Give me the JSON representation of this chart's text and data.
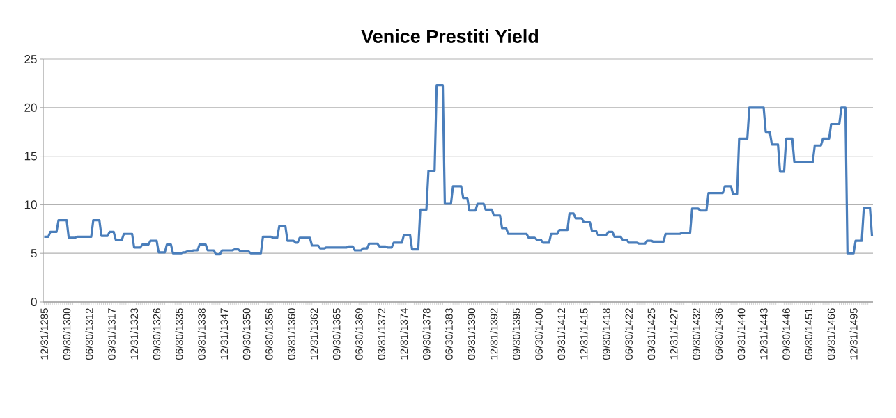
{
  "chart_data": {
    "type": "line",
    "title": "Venice Prestiti Yield",
    "categories": [
      "12/31/1285",
      null,
      null,
      null,
      null,
      null,
      null,
      null,
      null,
      null,
      null,
      "09/30/1300",
      null,
      null,
      null,
      null,
      null,
      null,
      null,
      null,
      null,
      null,
      "06/30/1312",
      null,
      null,
      null,
      null,
      null,
      null,
      null,
      null,
      null,
      null,
      "03/31/1317",
      null,
      null,
      null,
      null,
      null,
      null,
      null,
      null,
      null,
      null,
      "12/31/1323",
      null,
      null,
      null,
      null,
      null,
      null,
      null,
      null,
      null,
      null,
      "09/30/1326",
      null,
      null,
      null,
      null,
      null,
      null,
      null,
      null,
      null,
      null,
      "06/30/1335",
      null,
      null,
      null,
      null,
      null,
      null,
      null,
      null,
      null,
      null,
      "03/31/1338",
      null,
      null,
      null,
      null,
      null,
      null,
      null,
      null,
      null,
      null,
      "12/31/1347",
      null,
      null,
      null,
      null,
      null,
      null,
      null,
      null,
      null,
      null,
      "09/30/1350",
      null,
      null,
      null,
      null,
      null,
      null,
      null,
      null,
      null,
      null,
      "06/30/1356",
      null,
      null,
      null,
      null,
      null,
      null,
      null,
      null,
      null,
      null,
      "03/31/1360",
      null,
      null,
      null,
      null,
      null,
      null,
      null,
      null,
      null,
      null,
      "12/31/1362",
      null,
      null,
      null,
      null,
      null,
      null,
      null,
      null,
      null,
      null,
      "09/30/1365",
      null,
      null,
      null,
      null,
      null,
      null,
      null,
      null,
      null,
      null,
      "06/30/1369",
      null,
      null,
      null,
      null,
      null,
      null,
      null,
      null,
      null,
      null,
      "03/31/1372",
      null,
      null,
      null,
      null,
      null,
      null,
      null,
      null,
      null,
      null,
      "12/31/1374",
      null,
      null,
      null,
      null,
      null,
      null,
      null,
      null,
      null,
      null,
      "09/30/1378",
      null,
      null,
      null,
      null,
      null,
      null,
      null,
      null,
      null,
      null,
      "06/30/1383",
      null,
      null,
      null,
      null,
      null,
      null,
      null,
      null,
      null,
      null,
      "03/31/1390",
      null,
      null,
      null,
      null,
      null,
      null,
      null,
      null,
      null,
      null,
      "12/31/1392",
      null,
      null,
      null,
      null,
      null,
      null,
      null,
      null,
      null,
      null,
      "09/30/1395",
      null,
      null,
      null,
      null,
      null,
      null,
      null,
      null,
      null,
      null,
      "06/30/1400",
      null,
      null,
      null,
      null,
      null,
      null,
      null,
      null,
      null,
      null,
      "03/31/1412",
      null,
      null,
      null,
      null,
      null,
      null,
      null,
      null,
      null,
      null,
      "12/31/1415",
      null,
      null,
      null,
      null,
      null,
      null,
      null,
      null,
      null,
      null,
      "09/30/1418",
      null,
      null,
      null,
      null,
      null,
      null,
      null,
      null,
      null,
      null,
      "06/30/1422",
      null,
      null,
      null,
      null,
      null,
      null,
      null,
      null,
      null,
      null,
      "03/31/1425",
      null,
      null,
      null,
      null,
      null,
      null,
      null,
      null,
      null,
      null,
      "12/31/1427",
      null,
      null,
      null,
      null,
      null,
      null,
      null,
      null,
      null,
      null,
      "09/30/1432",
      null,
      null,
      null,
      null,
      null,
      null,
      null,
      null,
      null,
      null,
      "06/30/1436",
      null,
      null,
      null,
      null,
      null,
      null,
      null,
      null,
      null,
      null,
      "03/31/1440",
      null,
      null,
      null,
      null,
      null,
      null,
      null,
      null,
      null,
      null,
      "12/31/1443",
      null,
      null,
      null,
      null,
      null,
      null,
      null,
      null,
      null,
      null,
      "09/30/1446",
      null,
      null,
      null,
      null,
      null,
      null,
      null,
      null,
      null,
      null,
      "06/30/1451",
      null,
      null,
      null,
      null,
      null,
      null,
      null,
      null,
      null,
      null,
      "03/31/1466",
      null,
      null,
      null,
      null,
      null,
      null,
      null,
      null,
      null,
      null,
      "12/31/1495",
      null,
      null,
      null,
      null,
      null,
      null,
      null,
      null,
      null
    ],
    "values": [
      6.7,
      6.7,
      6.7,
      7.2,
      7.2,
      7.2,
      7.2,
      8.4,
      8.4,
      8.4,
      8.4,
      8.4,
      6.6,
      6.6,
      6.6,
      6.6,
      6.7,
      6.7,
      6.7,
      6.7,
      6.7,
      6.7,
      6.7,
      6.7,
      8.4,
      8.4,
      8.4,
      8.4,
      6.8,
      6.8,
      6.8,
      6.8,
      7.2,
      7.2,
      7.2,
      6.4,
      6.4,
      6.4,
      6.4,
      7.0,
      7.0,
      7.0,
      7.0,
      7.0,
      5.6,
      5.6,
      5.6,
      5.6,
      5.9,
      5.9,
      5.9,
      5.9,
      6.3,
      6.3,
      6.3,
      6.3,
      5.1,
      5.1,
      5.1,
      5.1,
      5.9,
      5.9,
      5.9,
      5.0,
      5.0,
      5.0,
      5.0,
      5.0,
      5.1,
      5.1,
      5.2,
      5.2,
      5.2,
      5.3,
      5.3,
      5.3,
      5.9,
      5.9,
      5.9,
      5.9,
      5.3,
      5.3,
      5.3,
      5.3,
      4.9,
      4.9,
      4.9,
      5.3,
      5.3,
      5.3,
      5.3,
      5.3,
      5.3,
      5.4,
      5.4,
      5.4,
      5.2,
      5.2,
      5.2,
      5.2,
      5.2,
      5.0,
      5.0,
      5.0,
      5.0,
      5.0,
      5.0,
      6.7,
      6.7,
      6.7,
      6.7,
      6.7,
      6.6,
      6.6,
      6.6,
      7.8,
      7.8,
      7.8,
      7.8,
      6.3,
      6.3,
      6.3,
      6.3,
      6.1,
      6.1,
      6.6,
      6.6,
      6.6,
      6.6,
      6.6,
      6.6,
      5.8,
      5.8,
      5.8,
      5.8,
      5.5,
      5.5,
      5.5,
      5.6,
      5.6,
      5.6,
      5.6,
      5.6,
      5.6,
      5.6,
      5.6,
      5.6,
      5.6,
      5.6,
      5.7,
      5.7,
      5.7,
      5.3,
      5.3,
      5.3,
      5.3,
      5.5,
      5.5,
      5.5,
      6.0,
      6.0,
      6.0,
      6.0,
      6.0,
      5.7,
      5.7,
      5.7,
      5.7,
      5.6,
      5.6,
      5.6,
      6.1,
      6.1,
      6.1,
      6.1,
      6.1,
      6.9,
      6.9,
      6.9,
      6.9,
      5.4,
      5.4,
      5.4,
      5.4,
      9.5,
      9.5,
      9.5,
      9.5,
      13.5,
      13.5,
      13.5,
      13.5,
      22.3,
      22.3,
      22.3,
      22.3,
      10.1,
      10.1,
      10.1,
      10.1,
      11.9,
      11.9,
      11.9,
      11.9,
      11.9,
      10.7,
      10.7,
      10.7,
      9.4,
      9.4,
      9.4,
      9.4,
      10.1,
      10.1,
      10.1,
      10.1,
      9.5,
      9.5,
      9.5,
      9.5,
      8.9,
      8.9,
      8.9,
      8.9,
      7.6,
      7.6,
      7.6,
      7.0,
      7.0,
      7.0,
      7.0,
      7.0,
      7.0,
      7.0,
      7.0,
      7.0,
      7.0,
      6.6,
      6.6,
      6.6,
      6.6,
      6.4,
      6.4,
      6.4,
      6.1,
      6.1,
      6.1,
      6.1,
      7.0,
      7.0,
      7.0,
      7.0,
      7.4,
      7.4,
      7.4,
      7.4,
      7.4,
      9.1,
      9.1,
      9.1,
      8.6,
      8.6,
      8.6,
      8.6,
      8.2,
      8.2,
      8.2,
      8.2,
      7.3,
      7.3,
      7.3,
      6.9,
      6.9,
      6.9,
      6.9,
      6.9,
      7.2,
      7.2,
      7.2,
      6.7,
      6.7,
      6.7,
      6.7,
      6.4,
      6.4,
      6.4,
      6.1,
      6.1,
      6.1,
      6.1,
      6.1,
      6.0,
      6.0,
      6.0,
      6.0,
      6.3,
      6.3,
      6.3,
      6.2,
      6.2,
      6.2,
      6.2,
      6.2,
      6.2,
      7.0,
      7.0,
      7.0,
      7.0,
      7.0,
      7.0,
      7.0,
      7.0,
      7.1,
      7.1,
      7.1,
      7.1,
      7.1,
      9.6,
      9.6,
      9.6,
      9.6,
      9.4,
      9.4,
      9.4,
      9.4,
      11.2,
      11.2,
      11.2,
      11.2,
      11.2,
      11.2,
      11.2,
      11.2,
      11.9,
      11.9,
      11.9,
      11.9,
      11.1,
      11.1,
      11.1,
      16.8,
      16.8,
      16.8,
      16.8,
      16.8,
      20.0,
      20.0,
      20.0,
      20.0,
      20.0,
      20.0,
      20.0,
      20.0,
      17.5,
      17.5,
      17.5,
      16.2,
      16.2,
      16.2,
      16.2,
      13.4,
      13.4,
      13.4,
      16.8,
      16.8,
      16.8,
      16.8,
      14.4,
      14.4,
      14.4,
      14.4,
      14.4,
      14.4,
      14.4,
      14.4,
      14.4,
      14.4,
      16.1,
      16.1,
      16.1,
      16.1,
      16.8,
      16.8,
      16.8,
      16.8,
      18.3,
      18.3,
      18.3,
      18.3,
      18.3,
      20.0,
      20.0,
      20.0,
      5.0,
      5.0,
      5.0,
      5.0,
      6.3,
      6.3,
      6.3,
      6.3,
      9.7,
      9.7,
      9.7,
      9.7,
      6.8
    ],
    "color": "#4a7ebb",
    "ylim": [
      0,
      25
    ],
    "yticks": [
      0,
      5,
      10,
      15,
      20,
      25
    ],
    "grid": "y"
  }
}
